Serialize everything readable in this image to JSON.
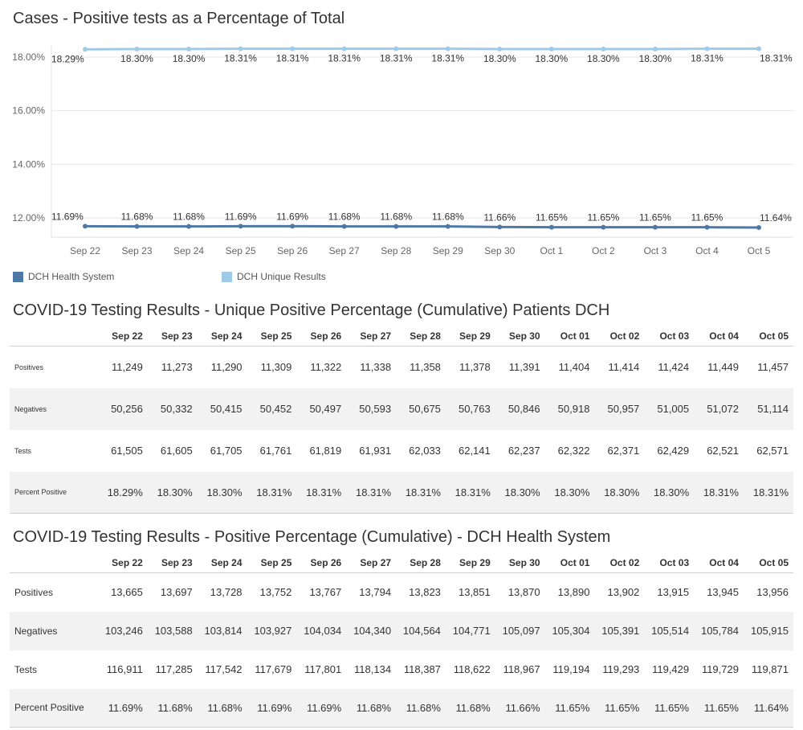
{
  "colors": {
    "health": "#4e79a7",
    "unique": "#a0cbe8",
    "grid": "#e6e6e6",
    "text": "#333333"
  },
  "chart_title": "Cases - Positive tests as a Percentage of Total",
  "chart_data": {
    "type": "line",
    "title": "Cases - Positive tests as a Percentage of Total",
    "categories": [
      "Sep 22",
      "Sep 23",
      "Sep 24",
      "Sep 25",
      "Sep 26",
      "Sep 27",
      "Sep 28",
      "Sep 29",
      "Sep 30",
      "Oct 1",
      "Oct 2",
      "Oct 3",
      "Oct 4",
      "Oct 5"
    ],
    "y_ticks": [
      "18.00%",
      "16.00%",
      "14.00%",
      "12.00%"
    ],
    "ylim": [
      11.4,
      18.45
    ],
    "grid": true,
    "legend_position": "bottom-left",
    "series": [
      {
        "name": "DCH Unique Results",
        "values": [
          18.29,
          18.3,
          18.3,
          18.31,
          18.31,
          18.31,
          18.31,
          18.31,
          18.3,
          18.3,
          18.3,
          18.3,
          18.31,
          18.31
        ],
        "labels": [
          "18.29%",
          "18.30%",
          "18.30%",
          "18.31%",
          "18.31%",
          "18.31%",
          "18.31%",
          "18.31%",
          "18.30%",
          "18.30%",
          "18.30%",
          "18.30%",
          "18.31%",
          "18.31%"
        ]
      },
      {
        "name": "DCH Health System",
        "values": [
          11.69,
          11.68,
          11.68,
          11.69,
          11.69,
          11.68,
          11.68,
          11.68,
          11.66,
          11.65,
          11.65,
          11.65,
          11.65,
          11.64
        ],
        "labels": [
          "11.69%",
          "11.68%",
          "11.68%",
          "11.69%",
          "11.69%",
          "11.68%",
          "11.68%",
          "11.68%",
          "11.66%",
          "11.65%",
          "11.65%",
          "11.65%",
          "11.65%",
          "11.64%"
        ]
      }
    ]
  },
  "legend": {
    "health_label": "DCH Health System",
    "unique_label": "DCH Unique Results"
  },
  "table1": {
    "title": "COVID-19 Testing Results - Unique Positive Percentage (Cumulative) Patients DCH",
    "columns": [
      "Sep 22",
      "Sep 23",
      "Sep 24",
      "Sep 25",
      "Sep 26",
      "Sep 27",
      "Sep 28",
      "Sep 29",
      "Sep 30",
      "Oct 01",
      "Oct 02",
      "Oct 03",
      "Oct 04",
      "Oct 05"
    ],
    "rows": [
      {
        "label": "Positives",
        "values": [
          "11,249",
          "11,273",
          "11,290",
          "11,309",
          "11,322",
          "11,338",
          "11,358",
          "11,378",
          "11,391",
          "11,404",
          "11,414",
          "11,424",
          "11,449",
          "11,457"
        ]
      },
      {
        "label": "Negatives",
        "values": [
          "50,256",
          "50,332",
          "50,415",
          "50,452",
          "50,497",
          "50,593",
          "50,675",
          "50,763",
          "50,846",
          "50,918",
          "50,957",
          "51,005",
          "51,072",
          "51,114"
        ]
      },
      {
        "label": "Tests",
        "values": [
          "61,505",
          "61,605",
          "61,705",
          "61,761",
          "61,819",
          "61,931",
          "62,033",
          "62,141",
          "62,237",
          "62,322",
          "62,371",
          "62,429",
          "62,521",
          "62,571"
        ]
      },
      {
        "label": "Percent Positive",
        "values": [
          "18.29%",
          "18.30%",
          "18.30%",
          "18.31%",
          "18.31%",
          "18.31%",
          "18.31%",
          "18.31%",
          "18.30%",
          "18.30%",
          "18.30%",
          "18.30%",
          "18.31%",
          "18.31%"
        ]
      }
    ]
  },
  "table2": {
    "title": "COVID-19 Testing Results - Positive Percentage (Cumulative) - DCH Health System",
    "columns": [
      "Sep 22",
      "Sep 23",
      "Sep 24",
      "Sep 25",
      "Sep 26",
      "Sep 27",
      "Sep 28",
      "Sep 29",
      "Sep 30",
      "Oct 01",
      "Oct 02",
      "Oct 03",
      "Oct 04",
      "Oct 05"
    ],
    "rows": [
      {
        "label": "Positives",
        "values": [
          "13,665",
          "13,697",
          "13,728",
          "13,752",
          "13,767",
          "13,794",
          "13,823",
          "13,851",
          "13,870",
          "13,890",
          "13,902",
          "13,915",
          "13,945",
          "13,956"
        ]
      },
      {
        "label": "Negatives",
        "values": [
          "103,246",
          "103,588",
          "103,814",
          "103,927",
          "104,034",
          "104,340",
          "104,564",
          "104,771",
          "105,097",
          "105,304",
          "105,391",
          "105,514",
          "105,784",
          "105,915"
        ]
      },
      {
        "label": "Tests",
        "values": [
          "116,911",
          "117,285",
          "117,542",
          "117,679",
          "117,801",
          "118,134",
          "118,387",
          "118,622",
          "118,967",
          "119,194",
          "119,293",
          "119,429",
          "119,729",
          "119,871"
        ]
      },
      {
        "label": "Percent Positive",
        "values": [
          "11.69%",
          "11.68%",
          "11.68%",
          "11.69%",
          "11.69%",
          "11.68%",
          "11.68%",
          "11.68%",
          "11.66%",
          "11.65%",
          "11.65%",
          "11.65%",
          "11.65%",
          "11.64%"
        ]
      }
    ]
  }
}
